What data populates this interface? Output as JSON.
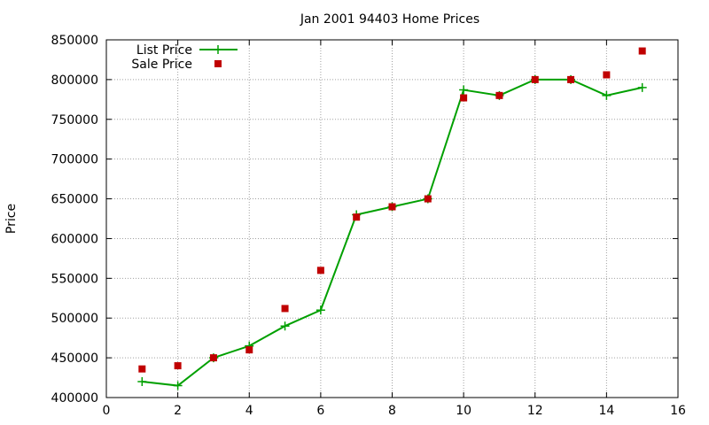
{
  "chart_data": {
    "type": "line",
    "title": "Jan 2001 94403 Home Prices",
    "xlabel": "",
    "ylabel": "Price",
    "xlim": [
      0,
      16
    ],
    "ylim": [
      400000,
      850000
    ],
    "x_ticks": [
      "0",
      "2",
      "4",
      "6",
      "8",
      "10",
      "12",
      "14",
      "16"
    ],
    "y_ticks": [
      "400000",
      "450000",
      "500000",
      "550000",
      "600000",
      "650000",
      "700000",
      "750000",
      "800000",
      "850000"
    ],
    "grid": true,
    "legend_position": "top-left",
    "x": [
      1,
      2,
      3,
      4,
      5,
      6,
      7,
      8,
      9,
      10,
      11,
      12,
      13,
      14,
      15
    ],
    "series": [
      {
        "name": "List Price",
        "style": "line+cross",
        "color": "#00a000",
        "values": [
          420000,
          415000,
          450000,
          465000,
          490000,
          510000,
          630000,
          640000,
          650000,
          787000,
          780000,
          800000,
          800000,
          780000,
          790000
        ]
      },
      {
        "name": "Sale Price",
        "style": "square-points",
        "color": "#c00000",
        "values": [
          436000,
          440000,
          450000,
          460000,
          512000,
          560000,
          627000,
          640000,
          650000,
          777000,
          780000,
          800000,
          800000,
          806000,
          836000
        ]
      }
    ]
  }
}
